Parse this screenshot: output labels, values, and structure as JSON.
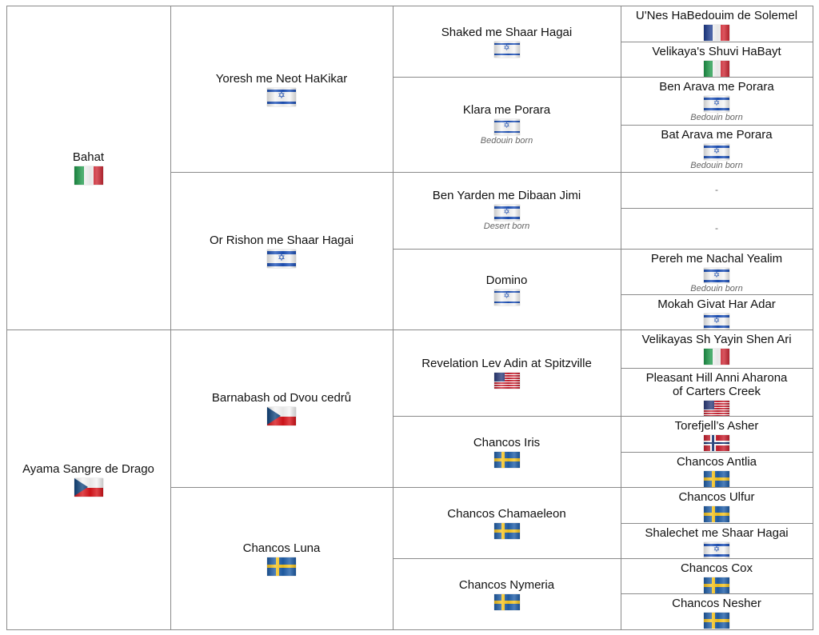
{
  "pedigree": [
    {
      "id": "g1a",
      "name": "Bahat",
      "flag": "italy",
      "note": ""
    },
    {
      "id": "g1b",
      "name": "Ayama Sangre de Drago",
      "flag": "czech",
      "note": ""
    },
    {
      "id": "g2a",
      "name": "Yoresh me Neot HaKikar",
      "flag": "israel",
      "note": ""
    },
    {
      "id": "g2b",
      "name": "Or Rishon me Shaar Hagai",
      "flag": "israel",
      "note": ""
    },
    {
      "id": "g2c",
      "name": "Barnabash od Dvou cedrů",
      "flag": "czech",
      "note": ""
    },
    {
      "id": "g2d",
      "name": "Chancos Luna",
      "flag": "sweden",
      "note": ""
    },
    {
      "id": "g3a",
      "name": "Shaked me Shaar Hagai",
      "flag": "israel",
      "note": ""
    },
    {
      "id": "g3b",
      "name": "Klara me Porara",
      "flag": "israel",
      "note": "Bedouin born"
    },
    {
      "id": "g3c",
      "name": "Ben Yarden me Dibaan Jimi",
      "flag": "israel",
      "note": "Desert born"
    },
    {
      "id": "g3d",
      "name": "Domino",
      "flag": "israel",
      "note": ""
    },
    {
      "id": "g3e",
      "name": "Revelation Lev Adin at Spitzville",
      "flag": "usa",
      "note": ""
    },
    {
      "id": "g3f",
      "name": "Chancos Iris",
      "flag": "sweden",
      "note": ""
    },
    {
      "id": "g3g",
      "name": "Chancos Chamaeleon",
      "flag": "sweden",
      "note": ""
    },
    {
      "id": "g3h",
      "name": "Chancos Nymeria",
      "flag": "sweden",
      "note": ""
    },
    {
      "id": "g4a",
      "name": "U'Nes HaBedouim de Solemel",
      "flag": "france",
      "note": ""
    },
    {
      "id": "g4b",
      "name": "Velikaya's Shuvi HaBayt",
      "flag": "italy",
      "note": ""
    },
    {
      "id": "g4c",
      "name": "Ben Arava me Porara",
      "flag": "israel",
      "note": "Bedouin born"
    },
    {
      "id": "g4d",
      "name": "Bat Arava me Porara",
      "flag": "israel",
      "note": "Bedouin born"
    },
    {
      "id": "g4e",
      "name": "-",
      "flag": "",
      "note": ""
    },
    {
      "id": "g4f",
      "name": "-",
      "flag": "",
      "note": ""
    },
    {
      "id": "g4g",
      "name": "Pereh me Nachal Yealim",
      "flag": "israel",
      "note": "Bedouin born"
    },
    {
      "id": "g4h",
      "name": "Mokah Givat Har Adar",
      "flag": "israel",
      "note": ""
    },
    {
      "id": "g4i",
      "name": "Velikayas Sh Yayin Shen Ari",
      "flag": "italy",
      "note": ""
    },
    {
      "id": "g4j",
      "name": "Pleasant Hill Anni Aharona\nof Carters Creek",
      "flag": "usa",
      "note": ""
    },
    {
      "id": "g4k",
      "name": "Torefjell’s Asher",
      "flag": "norway",
      "note": ""
    },
    {
      "id": "g4l",
      "name": "Chancos Antlia",
      "flag": "sweden",
      "note": ""
    },
    {
      "id": "g4m",
      "name": "Chancos Ulfur",
      "flag": "sweden",
      "note": ""
    },
    {
      "id": "g4n",
      "name": "Shalechet me Shaar Hagai",
      "flag": "israel",
      "note": ""
    },
    {
      "id": "g4o",
      "name": "Chancos Cox",
      "flag": "sweden",
      "note": ""
    },
    {
      "id": "g4p",
      "name": "Chancos Nesher",
      "flag": "sweden",
      "note": ""
    }
  ]
}
